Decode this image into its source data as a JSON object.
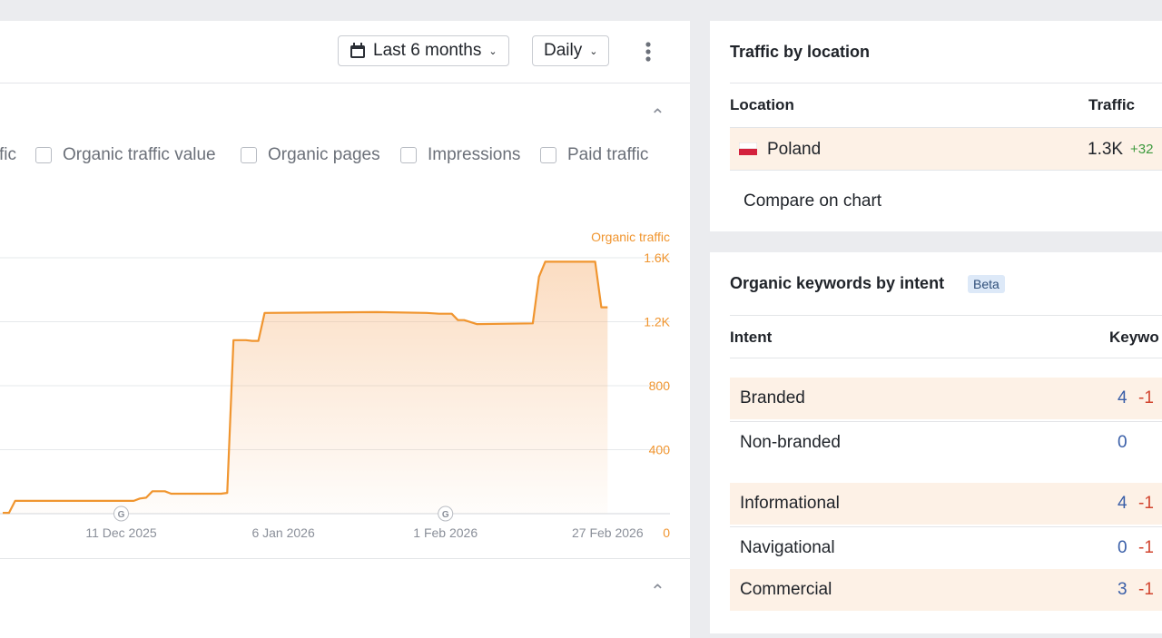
{
  "toolbar": {
    "date_range": "Last 6 months",
    "granularity": "Daily"
  },
  "metrics": [
    "fic",
    "Organic traffic value",
    "Organic pages",
    "Impressions",
    "Paid traffic"
  ],
  "chart_data": {
    "type": "area",
    "y_label": "Organic traffic",
    "x": [
      "2025-11-22",
      "2025-11-23",
      "2025-11-24",
      "2025-12-13",
      "2025-12-14",
      "2025-12-15",
      "2025-12-16",
      "2025-12-18",
      "2025-12-19",
      "2025-12-27",
      "2025-12-28",
      "2025-12-29",
      "2025-12-31",
      "2026-01-01",
      "2026-01-02",
      "2026-01-03",
      "2026-01-21",
      "2026-01-29",
      "2026-01-31",
      "2026-02-02",
      "2026-02-03",
      "2026-02-04",
      "2026-02-06",
      "2026-02-15",
      "2026-02-16",
      "2026-02-17",
      "2026-02-25",
      "2026-02-26",
      "2026-02-27"
    ],
    "series": [
      {
        "name": "Organic traffic",
        "color": "#f0952f",
        "values": [
          5,
          5,
          80,
          80,
          95,
          100,
          140,
          140,
          125,
          125,
          130,
          1085,
          1085,
          1080,
          1080,
          1255,
          1260,
          1255,
          1250,
          1250,
          1210,
          1210,
          1185,
          1190,
          1480,
          1575,
          1575,
          1290,
          1290
        ]
      }
    ],
    "xlim": [
      "2025-11-22",
      "2026-03-09"
    ],
    "xticks": [
      {
        "value": "2025-12-11",
        "label": "11 Dec 2025"
      },
      {
        "value": "2026-01-06",
        "label": "6 Jan 2026"
      },
      {
        "value": "2026-02-01",
        "label": "1 Feb 2026"
      },
      {
        "value": "2026-02-27",
        "label": "27 Feb 2026"
      }
    ],
    "ylim": [
      0,
      1600
    ],
    "yticks": [
      0,
      400,
      800,
      {
        "value": 1200,
        "label": "1.2K"
      },
      {
        "value": 1600,
        "label": "1.6K"
      }
    ],
    "grid": true,
    "annotations": [
      {
        "x": "2025-12-11",
        "label": "G"
      },
      {
        "x": "2026-02-01",
        "label": "G"
      }
    ]
  },
  "traffic_by_location": {
    "title": "Traffic by location",
    "columns": [
      "Location",
      "Traffic"
    ],
    "rows": [
      {
        "location": "Poland",
        "traffic": "1.3K",
        "change": "+32"
      }
    ],
    "link": "Compare on chart"
  },
  "keywords_by_intent": {
    "title": "Organic keywords by intent",
    "badge": "Beta",
    "columns": [
      "Intent",
      "Keywo"
    ],
    "rows": [
      {
        "intent": "Branded",
        "keywords": 4,
        "change": "-1"
      },
      {
        "intent": "Non-branded",
        "keywords": 0
      },
      {
        "intent": "Informational",
        "keywords": 4,
        "change": "-1"
      },
      {
        "intent": "Navigational",
        "keywords": 0,
        "change": "-1"
      },
      {
        "intent": "Commercial",
        "keywords": 3,
        "change": "-1"
      }
    ]
  }
}
